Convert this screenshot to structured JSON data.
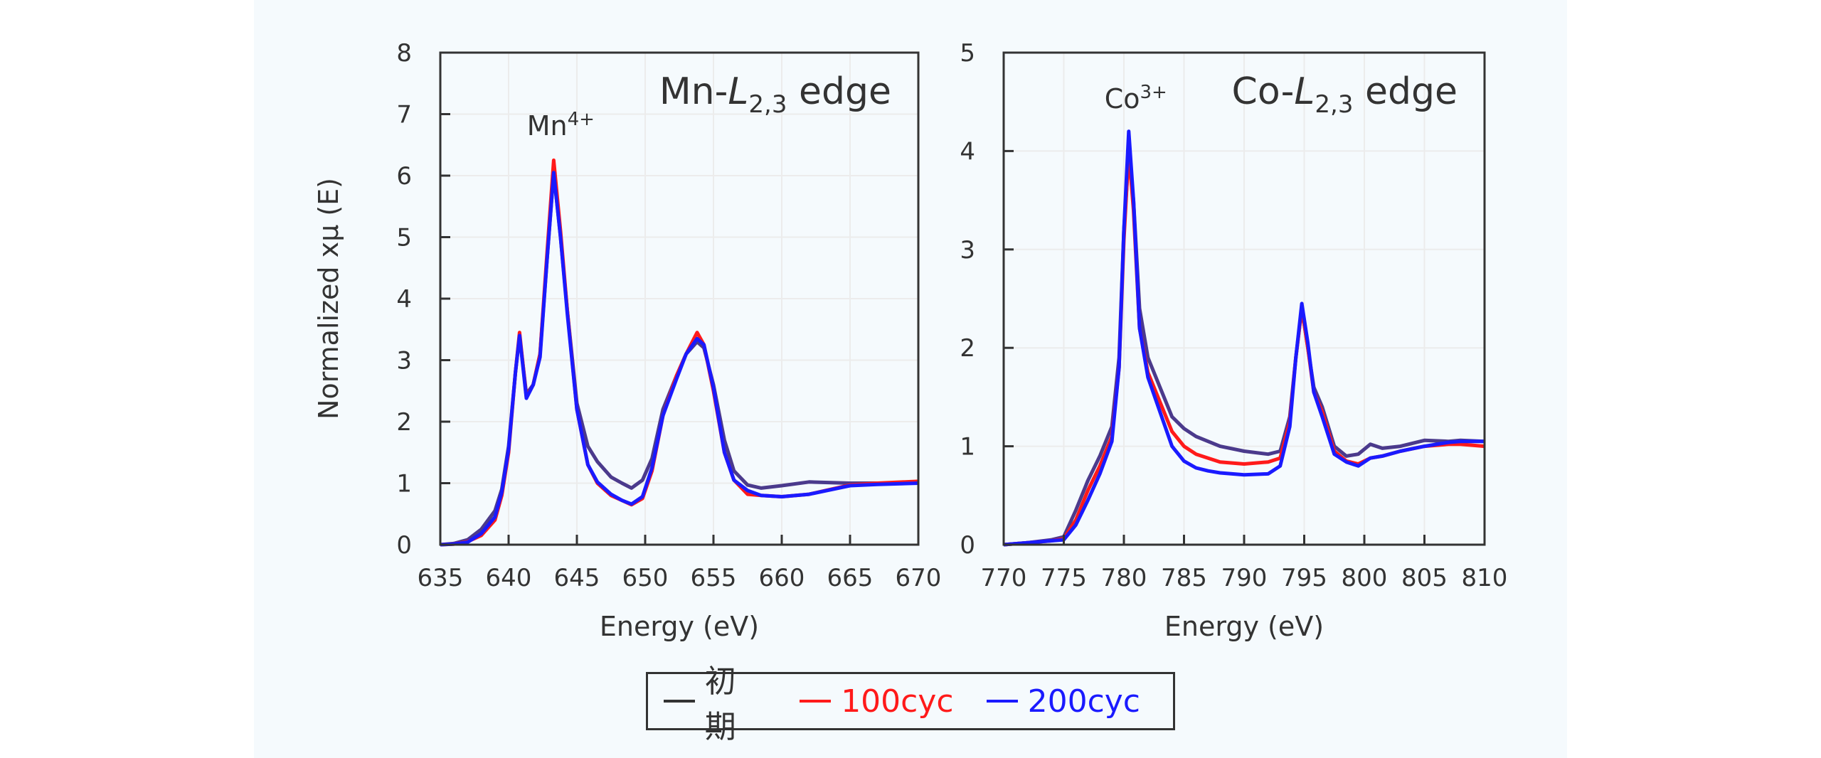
{
  "legend": {
    "items": [
      {
        "label": "初期",
        "color": "#333333",
        "line_color": "#4b3a8c"
      },
      {
        "label": "100cyc",
        "color": "#ff1a1a",
        "line_color": "#ff1a1a"
      },
      {
        "label": "200cyc",
        "color": "#1a1aff",
        "line_color": "#1a1aff"
      }
    ]
  },
  "chart_data": [
    {
      "type": "line",
      "title": "Mn-L2,3 edge",
      "title_parts": {
        "prefix": "Mn-",
        "italic": "L",
        "sub": "2,3",
        "suffix": " edge"
      },
      "annotation": {
        "text": "Mn",
        "sup": "4+",
        "x": 643.3
      },
      "xlabel": "Energy (eV)",
      "ylabel": "Normalized xμ (E)",
      "xlim": [
        635,
        670
      ],
      "ylim": [
        0,
        8
      ],
      "xticks": [
        635,
        640,
        645,
        650,
        655,
        660,
        665,
        670
      ],
      "yticks": [
        0,
        1,
        2,
        3,
        4,
        5,
        6,
        7,
        8
      ],
      "grid": true,
      "series": [
        {
          "name": "初期",
          "color": "#4b3a8c",
          "x": [
            635,
            636,
            637,
            638,
            639,
            639.5,
            640,
            640.5,
            640.8,
            641.3,
            641.8,
            642.3,
            642.8,
            643.3,
            643.8,
            644.3,
            645,
            645.8,
            646.5,
            647.5,
            648.3,
            649,
            649.8,
            650.5,
            651.3,
            652.3,
            653,
            653.8,
            654.3,
            655,
            655.8,
            656.5,
            657.5,
            658.5,
            660,
            662,
            665,
            667,
            670
          ],
          "y": [
            0,
            0.02,
            0.08,
            0.25,
            0.55,
            0.9,
            1.6,
            2.8,
            3.4,
            2.45,
            2.6,
            3.1,
            4.6,
            6.05,
            5.0,
            3.8,
            2.3,
            1.6,
            1.35,
            1.1,
            1.0,
            0.92,
            1.05,
            1.4,
            2.2,
            2.75,
            3.1,
            3.3,
            3.2,
            2.6,
            1.7,
            1.2,
            0.97,
            0.92,
            0.96,
            1.02,
            1.0,
            1.0,
            1.0
          ]
        },
        {
          "name": "100cyc",
          "color": "#ff1a1a",
          "x": [
            635,
            636,
            637,
            638,
            639,
            639.5,
            640,
            640.5,
            640.8,
            641.3,
            641.8,
            642.3,
            642.8,
            643.3,
            643.8,
            644.3,
            645,
            645.8,
            646.5,
            647.5,
            648.3,
            649,
            649.8,
            650.5,
            651.3,
            652.3,
            653,
            653.8,
            654.3,
            655,
            655.8,
            656.5,
            657.5,
            658.5,
            660,
            662,
            665,
            667,
            670
          ],
          "y": [
            0,
            0.01,
            0.05,
            0.15,
            0.4,
            0.8,
            1.5,
            2.8,
            3.45,
            2.4,
            2.6,
            3.1,
            4.7,
            6.25,
            5.1,
            3.8,
            2.2,
            1.3,
            1.0,
            0.8,
            0.72,
            0.65,
            0.75,
            1.2,
            2.1,
            2.75,
            3.1,
            3.45,
            3.25,
            2.5,
            1.5,
            1.05,
            0.82,
            0.8,
            0.78,
            0.82,
            0.97,
            1.0,
            1.03
          ]
        },
        {
          "name": "200cyc",
          "color": "#1a1aff",
          "x": [
            635,
            636,
            637,
            638,
            639,
            639.5,
            640,
            640.5,
            640.8,
            641.3,
            641.8,
            642.3,
            642.8,
            643.3,
            643.8,
            644.3,
            645,
            645.8,
            646.5,
            647.5,
            648.3,
            649,
            649.8,
            650.5,
            651.3,
            652.3,
            653,
            653.8,
            654.3,
            655,
            655.8,
            656.5,
            657.5,
            658.5,
            660,
            662,
            665,
            667,
            670
          ],
          "y": [
            0,
            0.01,
            0.04,
            0.18,
            0.45,
            0.85,
            1.55,
            2.8,
            3.4,
            2.38,
            2.6,
            3.05,
            4.6,
            6.05,
            5.0,
            3.75,
            2.2,
            1.3,
            1.02,
            0.82,
            0.72,
            0.66,
            0.78,
            1.25,
            2.1,
            2.7,
            3.1,
            3.35,
            3.25,
            2.55,
            1.5,
            1.05,
            0.88,
            0.8,
            0.78,
            0.82,
            0.96,
            0.98,
            1.0
          ]
        }
      ]
    },
    {
      "type": "line",
      "title": "Co-L2,3 edge",
      "title_parts": {
        "prefix": "Co-",
        "italic": "L",
        "sub": "2,3",
        "suffix": " edge"
      },
      "annotation": {
        "text": "Co",
        "sup": "3+",
        "x": 780.4
      },
      "xlabel": "Energy (eV)",
      "ylabel": "",
      "xlim": [
        770,
        810
      ],
      "ylim": [
        0,
        5
      ],
      "xticks": [
        770,
        775,
        780,
        785,
        790,
        795,
        800,
        805,
        810
      ],
      "yticks": [
        0,
        1,
        2,
        3,
        4,
        5
      ],
      "grid": true,
      "series": [
        {
          "name": "初期",
          "color": "#4b3a8c",
          "x": [
            770,
            772,
            774,
            775,
            776,
            777,
            778,
            779,
            779.6,
            780,
            780.4,
            780.8,
            781.3,
            782,
            783,
            784,
            785,
            786,
            787,
            788,
            790,
            792,
            793,
            793.8,
            794.3,
            794.8,
            795.3,
            795.8,
            796.5,
            797.5,
            798.5,
            799.5,
            800.5,
            801.5,
            803,
            805,
            807,
            808,
            810
          ],
          "y": [
            0,
            0.02,
            0.05,
            0.08,
            0.35,
            0.65,
            0.9,
            1.2,
            1.9,
            3.2,
            3.95,
            3.5,
            2.4,
            1.9,
            1.6,
            1.3,
            1.18,
            1.1,
            1.05,
            1.0,
            0.95,
            0.92,
            0.95,
            1.3,
            1.9,
            2.4,
            2.0,
            1.6,
            1.4,
            1.0,
            0.9,
            0.92,
            1.02,
            0.98,
            1.0,
            1.06,
            1.05,
            1.06,
            1.05
          ]
        },
        {
          "name": "100cyc",
          "color": "#ff1a1a",
          "x": [
            770,
            772,
            774,
            775,
            776,
            777,
            778,
            779,
            779.6,
            780,
            780.4,
            780.8,
            781.3,
            782,
            783,
            784,
            785,
            786,
            787,
            788,
            790,
            792,
            793,
            793.8,
            794.3,
            794.8,
            795.3,
            795.8,
            796.5,
            797.5,
            798.5,
            799.5,
            800.5,
            801.5,
            803,
            805,
            807,
            808,
            810
          ],
          "y": [
            0,
            0.02,
            0.04,
            0.06,
            0.25,
            0.55,
            0.8,
            1.1,
            1.8,
            3.1,
            4.0,
            3.4,
            2.2,
            1.75,
            1.45,
            1.15,
            1.0,
            0.92,
            0.88,
            0.84,
            0.82,
            0.84,
            0.88,
            1.25,
            1.9,
            2.4,
            2.0,
            1.55,
            1.35,
            0.95,
            0.85,
            0.82,
            0.88,
            0.9,
            0.95,
            1.0,
            1.02,
            1.02,
            1.0
          ]
        },
        {
          "name": "200cyc",
          "color": "#1a1aff",
          "x": [
            770,
            772,
            774,
            775,
            776,
            777,
            778,
            779,
            779.6,
            780,
            780.4,
            780.8,
            781.3,
            782,
            783,
            784,
            785,
            786,
            787,
            788,
            790,
            792,
            793,
            793.8,
            794.3,
            794.8,
            795.3,
            795.8,
            796.5,
            797.5,
            798.5,
            799.5,
            800.5,
            801.5,
            803,
            805,
            807,
            808,
            810
          ],
          "y": [
            0,
            0.02,
            0.04,
            0.05,
            0.2,
            0.45,
            0.72,
            1.05,
            1.8,
            3.2,
            4.2,
            3.5,
            2.2,
            1.7,
            1.35,
            1.0,
            0.85,
            0.78,
            0.75,
            0.73,
            0.71,
            0.72,
            0.8,
            1.2,
            1.9,
            2.45,
            2.05,
            1.55,
            1.3,
            0.92,
            0.84,
            0.8,
            0.88,
            0.9,
            0.95,
            1.0,
            1.04,
            1.05,
            1.05
          ]
        }
      ]
    }
  ]
}
